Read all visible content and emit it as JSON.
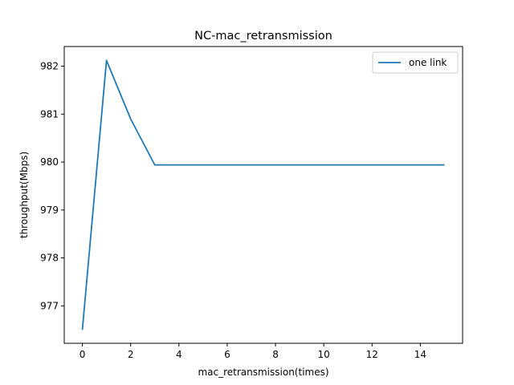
{
  "chart_data": {
    "type": "line",
    "title": "NC-mac_retransmission",
    "xlabel": "mac_retransmission(times)",
    "ylabel": "throughput(Mbps)",
    "xlim": [
      -0.75,
      15.75
    ],
    "ylim": [
      976.22,
      982.41
    ],
    "xticks": [
      0,
      2,
      4,
      6,
      8,
      10,
      12,
      14
    ],
    "yticks": [
      977,
      978,
      979,
      980,
      981,
      982
    ],
    "grid": false,
    "legend_position": "top-right",
    "series": [
      {
        "name": "one link",
        "color": "#1f77b4",
        "x": [
          0,
          1,
          2,
          3,
          4,
          5,
          6,
          7,
          8,
          9,
          10,
          11,
          12,
          13,
          14,
          15
        ],
        "y": [
          976.5,
          982.12,
          980.9,
          979.94,
          979.94,
          979.94,
          979.94,
          979.94,
          979.94,
          979.94,
          979.94,
          979.94,
          979.94,
          979.94,
          979.94,
          979.94
        ]
      }
    ]
  }
}
